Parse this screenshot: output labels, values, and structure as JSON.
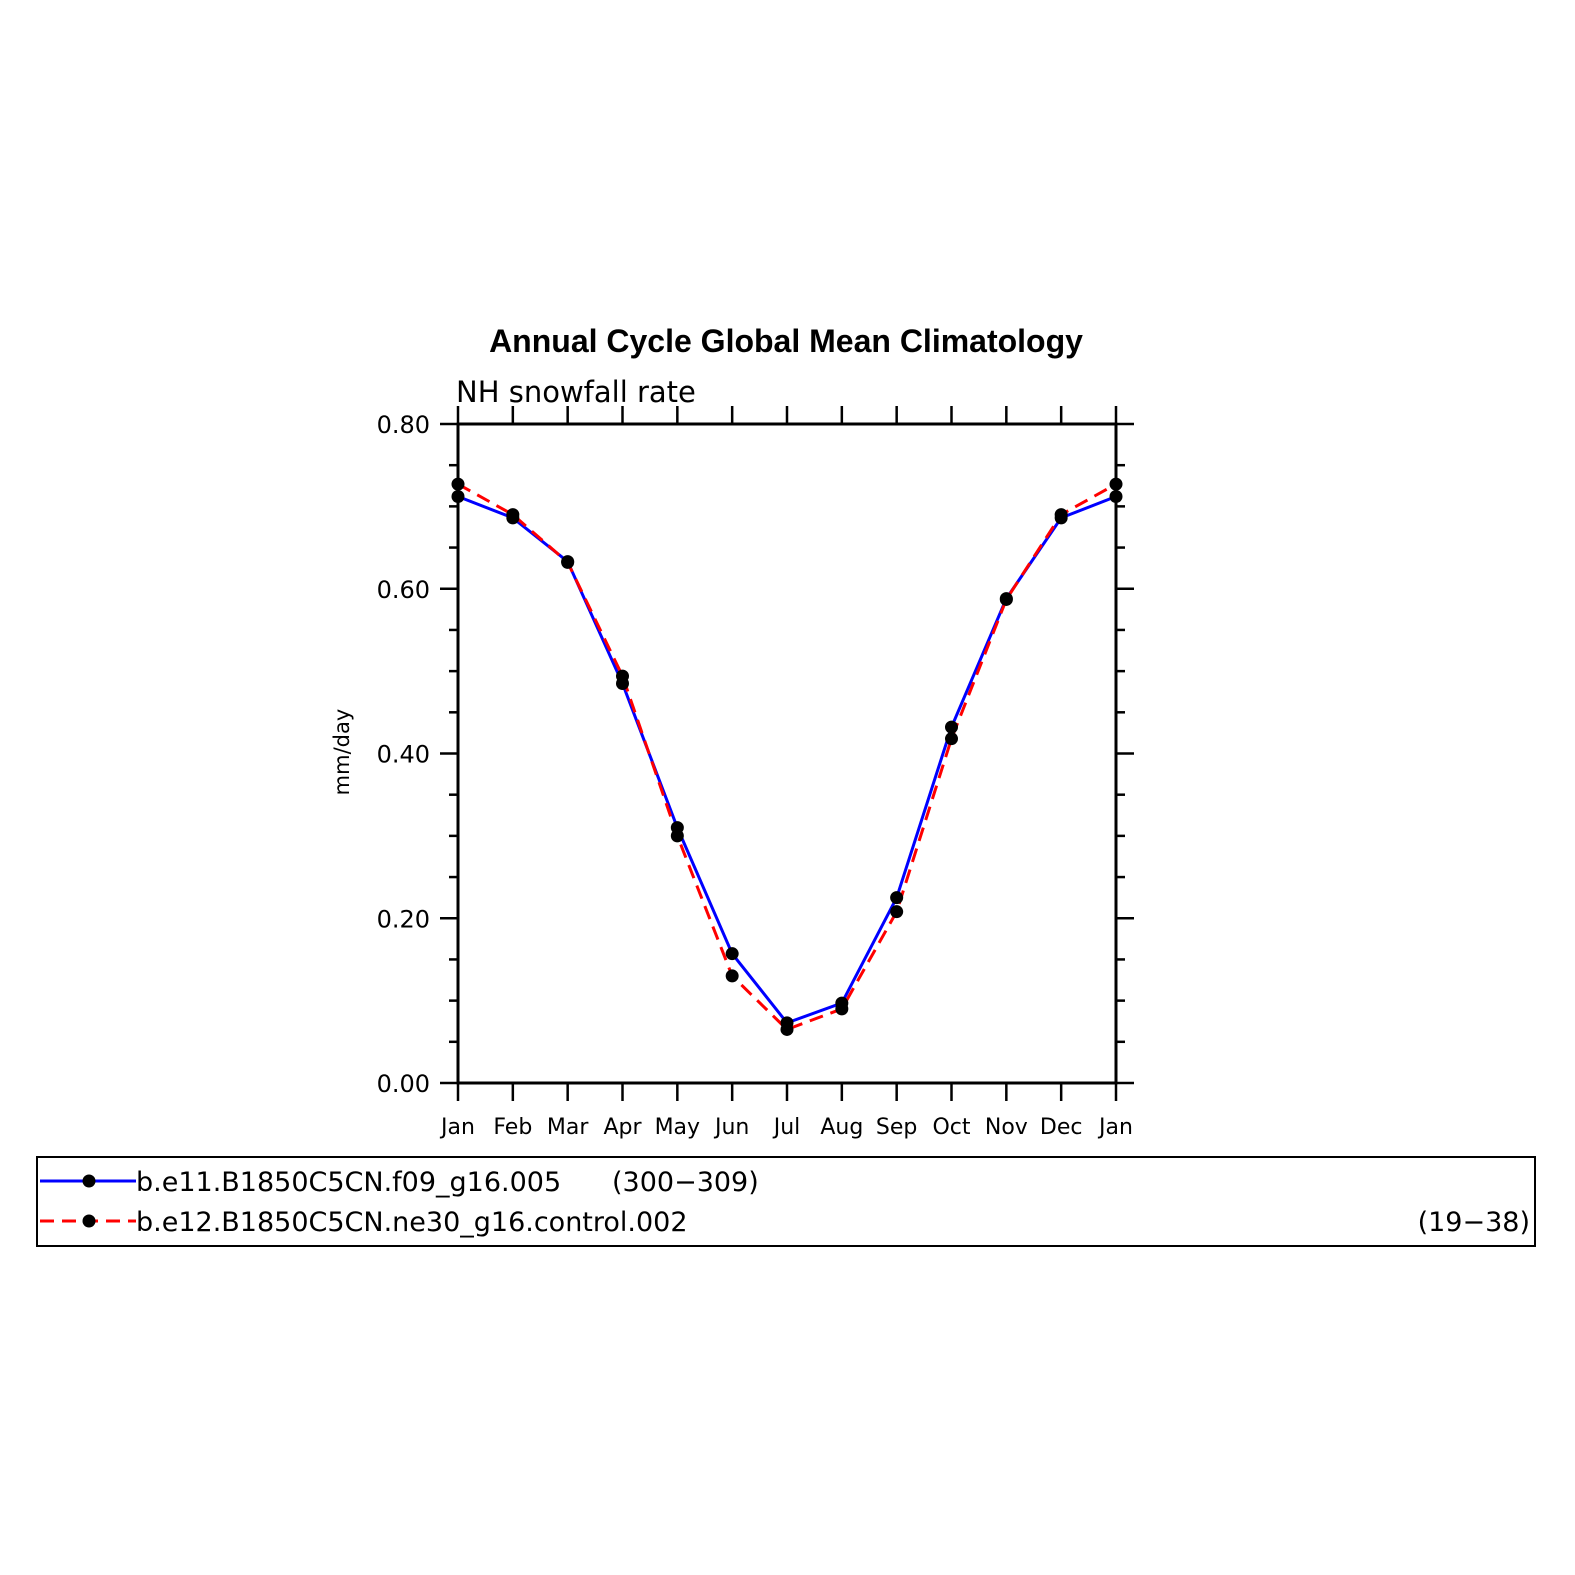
{
  "chart_data": {
    "type": "line",
    "title": "Annual Cycle Global Mean Climatology",
    "subtitle": "NH snowfall rate",
    "ylabel": "mm/day",
    "xlabel": "",
    "ylim": [
      0.0,
      0.8
    ],
    "yticks": [
      "0.00",
      "0.20",
      "0.40",
      "0.60",
      "0.80"
    ],
    "categories": [
      "Jan",
      "Feb",
      "Mar",
      "Apr",
      "May",
      "Jun",
      "Jul",
      "Aug",
      "Sep",
      "Oct",
      "Nov",
      "Dec",
      "Jan"
    ],
    "grid": false,
    "legend_position": "bottom",
    "series": [
      {
        "name": "b.e11.B1850C5CN.f09_g16.005",
        "years": "(300−309)",
        "color": "#0000ff",
        "style": "solid",
        "values": [
          0.712,
          0.686,
          0.633,
          0.485,
          0.31,
          0.157,
          0.073,
          0.097,
          0.225,
          0.432,
          0.588,
          0.686,
          0.712
        ]
      },
      {
        "name": "b.e12.B1850C5CN.ne30_g16.control.002",
        "years": "(19−38)",
        "color": "#ff0000",
        "style": "dashed",
        "values": [
          0.727,
          0.69,
          0.632,
          0.494,
          0.3,
          0.13,
          0.065,
          0.09,
          0.208,
          0.418,
          0.587,
          0.69,
          0.727
        ]
      }
    ]
  }
}
